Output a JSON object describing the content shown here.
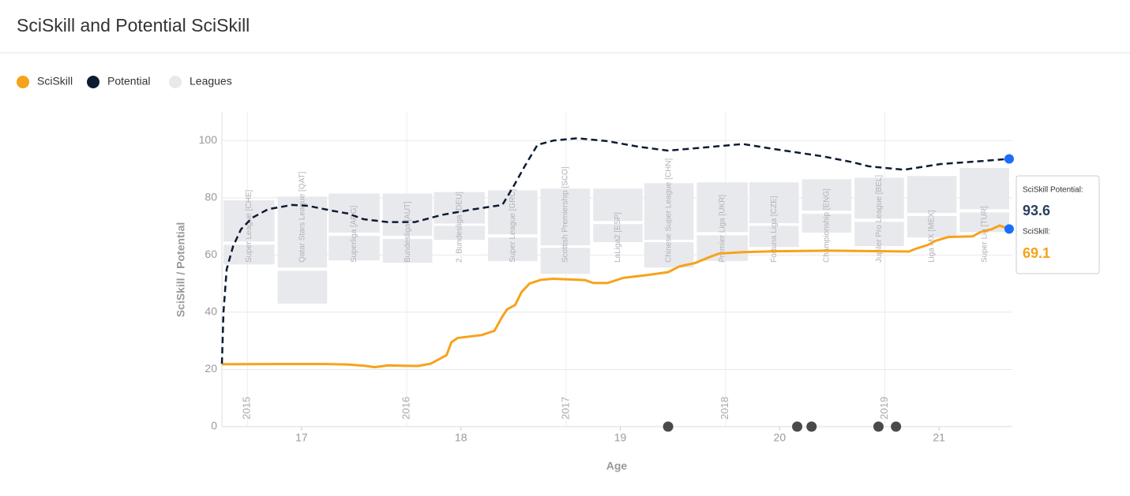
{
  "header": {
    "title": "SciSkill and Potential SciSkill"
  },
  "chart_data": {
    "type": "line",
    "x_label": "Age",
    "y_label": "SciSkill / Potential",
    "xlim": [
      16.5,
      21.46
    ],
    "ylim": [
      0,
      110
    ],
    "xticks": [
      17,
      18,
      19,
      20,
      21
    ],
    "yticks": [
      0,
      20,
      40,
      60,
      80,
      100
    ],
    "year_ticks": [
      {
        "value": 16.66,
        "label": "2015"
      },
      {
        "value": 17.66,
        "label": "2016"
      },
      {
        "value": 18.66,
        "label": "2017"
      },
      {
        "value": 19.66,
        "label": "2018"
      },
      {
        "value": 20.66,
        "label": "2019"
      }
    ],
    "grid": true,
    "series": [
      {
        "name": "SciSkill",
        "color": "#f7a21b",
        "dash": false,
        "x": [
          16.5,
          16.84,
          17.14,
          17.29,
          17.39,
          17.46,
          17.54,
          17.73,
          17.81,
          17.86,
          17.91,
          17.94,
          17.98,
          18.13,
          18.21,
          18.26,
          18.29,
          18.34,
          18.38,
          18.43,
          18.5,
          18.58,
          18.78,
          18.83,
          18.92,
          19.02,
          19.17,
          19.3,
          19.37,
          19.47,
          19.57,
          19.62,
          19.77,
          19.97,
          20.31,
          20.81,
          20.86,
          20.93,
          20.98,
          21.06,
          21.21,
          21.26,
          21.33,
          21.38,
          21.44
        ],
        "values": [
          21.8,
          21.9,
          21.9,
          21.7,
          21.3,
          20.8,
          21.4,
          21.2,
          22,
          23.5,
          25,
          29.5,
          31,
          32,
          33.5,
          38.5,
          41,
          42.5,
          47,
          50,
          51.3,
          51.7,
          51.2,
          50.2,
          50.2,
          52,
          53,
          54,
          56,
          57.2,
          59.5,
          60.5,
          61,
          61.3,
          61.5,
          61.2,
          62.3,
          63.5,
          65,
          66.3,
          66.5,
          68,
          69,
          70.3,
          69.1
        ]
      },
      {
        "name": "Potential",
        "color": "#0d1b33",
        "dash": true,
        "x": [
          16.5,
          16.51,
          16.53,
          16.57,
          16.62,
          16.69,
          16.79,
          16.94,
          17.04,
          17.19,
          17.29,
          17.39,
          17.54,
          17.71,
          17.88,
          18.08,
          18.26,
          18.33,
          18.4,
          18.48,
          18.58,
          18.73,
          18.92,
          19.12,
          19.3,
          19.57,
          19.77,
          19.97,
          20.27,
          20.46,
          20.56,
          20.78,
          21.01,
          21.26,
          21.44
        ],
        "values": [
          22,
          40,
          55,
          63,
          69,
          73,
          76,
          77.5,
          77.2,
          75.5,
          74.5,
          72.5,
          71.5,
          71.5,
          74,
          76,
          77.5,
          84,
          91,
          98.5,
          100,
          100.8,
          99.8,
          97.8,
          96.5,
          97.8,
          98.8,
          97,
          94.5,
          92.4,
          91,
          89.8,
          91.8,
          92.8,
          93.6
        ]
      }
    ],
    "leagues_legend": {
      "name": "Leagues",
      "color": "#e8e9ec"
    },
    "leagues": [
      {
        "name": "Super League [CHE]",
        "start": 16.51,
        "end": 16.83,
        "ranges": [
          [
            79.1,
            64.7
          ],
          [
            63.6,
            56.7
          ]
        ]
      },
      {
        "name": "Qatar Stars League [QAT]",
        "start": 16.85,
        "end": 17.16,
        "ranges": [
          [
            80.4,
            55.6
          ],
          [
            54.5,
            43
          ]
        ]
      },
      {
        "name": "Superliga [ARG]",
        "start": 17.17,
        "end": 17.49,
        "ranges": [
          [
            81.5,
            67.8
          ],
          [
            66.7,
            58.1
          ]
        ]
      },
      {
        "name": "Bundesliga [AUT]",
        "start": 17.51,
        "end": 17.82,
        "ranges": [
          [
            81.5,
            66.7
          ],
          [
            65.6,
            57.3
          ]
        ]
      },
      {
        "name": "2. Bundesliga [DEU]",
        "start": 17.83,
        "end": 18.15,
        "ranges": [
          [
            82,
            71
          ],
          [
            70.2,
            65.3
          ]
        ]
      },
      {
        "name": "Super League [GRC]",
        "start": 18.17,
        "end": 18.48,
        "ranges": [
          [
            82.6,
            67.2
          ],
          [
            66.1,
            57.9
          ]
        ]
      },
      {
        "name": "Scottish Premiership [SCO]",
        "start": 18.5,
        "end": 18.81,
        "ranges": [
          [
            83.2,
            63.4
          ],
          [
            62.5,
            53.4
          ]
        ]
      },
      {
        "name": "LaLiga2 [ESP]",
        "start": 18.83,
        "end": 19.14,
        "ranges": [
          [
            83.2,
            71.9
          ],
          [
            70.8,
            64.5
          ]
        ]
      },
      {
        "name": "Chinese Super League [CHN]",
        "start": 19.15,
        "end": 19.46,
        "ranges": [
          [
            85.1,
            65.3
          ],
          [
            64.5,
            55.6
          ]
        ]
      },
      {
        "name": "Premier Liga [UKR]",
        "start": 19.48,
        "end": 19.8,
        "ranges": [
          [
            85.4,
            68
          ],
          [
            66.9,
            57.9
          ]
        ]
      },
      {
        "name": "Fortuna Liga [CZE]",
        "start": 19.81,
        "end": 20.12,
        "ranges": [
          [
            85.4,
            71.1
          ],
          [
            70.2,
            62.8
          ]
        ]
      },
      {
        "name": "Championship [ENG]",
        "start": 20.14,
        "end": 20.45,
        "ranges": [
          [
            86.5,
            75.5
          ],
          [
            74.4,
            67.8
          ]
        ]
      },
      {
        "name": "Jupiler Pro League [BEL]",
        "start": 20.47,
        "end": 20.78,
        "ranges": [
          [
            87,
            72.7
          ],
          [
            71.6,
            63.1
          ]
        ]
      },
      {
        "name": "Liga MX [MEX]",
        "start": 20.8,
        "end": 21.11,
        "ranges": [
          [
            87.6,
            74.7
          ],
          [
            73.6,
            66.1
          ]
        ]
      },
      {
        "name": "Super Lig [TUR]",
        "start": 21.13,
        "end": 21.44,
        "ranges": [
          [
            90.4,
            76
          ],
          [
            74.9,
            68
          ]
        ]
      }
    ],
    "events": {
      "color": "#4a4a4a",
      "x": [
        19.3,
        20.11,
        20.2,
        20.62,
        20.73
      ]
    },
    "tooltip": {
      "potential_label": "SciSkill Potential:",
      "potential_value": 93.6,
      "skill_label": "SciSkill:",
      "skill_value": 69.1,
      "dot_color": "#1a6dff"
    }
  }
}
